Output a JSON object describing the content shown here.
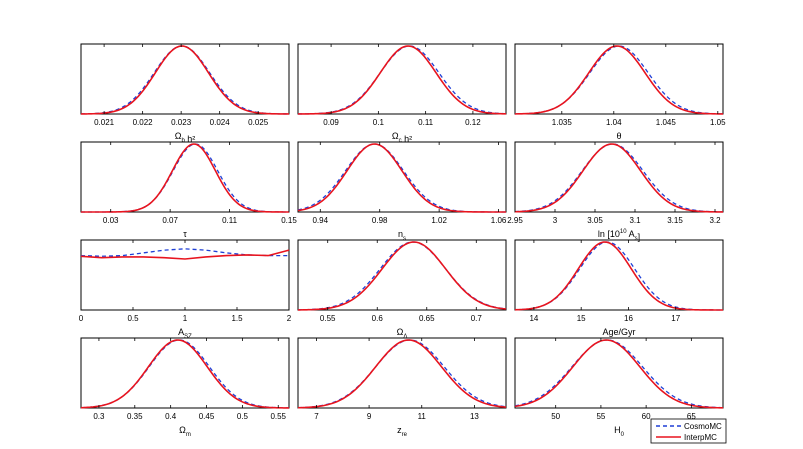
{
  "chart_data": [
    {
      "type": "line",
      "xlabel": {
        "main": "Ω",
        "sub": "b",
        "rest": " h²"
      },
      "xticks": [
        "0.021",
        "0.022",
        "0.023",
        "0.024",
        "0.025"
      ],
      "xtick_values": [
        0.021,
        0.022,
        0.023,
        0.024,
        0.025
      ],
      "xlim": [
        0.0204,
        0.0258
      ],
      "curves": {
        "CosmoMC": {
          "kind": "gauss",
          "mu": 0.02302,
          "sigma": 0.00072
        },
        "InterpMC": {
          "kind": "gauss",
          "mu": 0.02302,
          "sigma": 0.00069
        }
      }
    },
    {
      "type": "line",
      "xlabel": {
        "main": "Ω",
        "sub": "c",
        "rest": " h²"
      },
      "xticks": [
        "0.09",
        "0.1",
        "0.11",
        "0.12"
      ],
      "xtick_values": [
        0.09,
        0.1,
        0.11,
        0.12
      ],
      "xlim": [
        0.083,
        0.127
      ],
      "curves": {
        "CosmoMC": {
          "kind": "gauss",
          "mu": 0.1066,
          "sigma": 0.0062
        },
        "InterpMC": {
          "kind": "gauss",
          "mu": 0.1063,
          "sigma": 0.0059
        }
      }
    },
    {
      "type": "line",
      "xlabel": {
        "main": "θ",
        "sub": "",
        "rest": ""
      },
      "xticks": [
        "1.035",
        "1.04",
        "1.045",
        "1.05"
      ],
      "xtick_values": [
        1.035,
        1.04,
        1.045,
        1.05
      ],
      "xlim": [
        1.0305,
        1.0505
      ],
      "curves": {
        "CosmoMC": {
          "kind": "gauss",
          "mu": 1.0405,
          "sigma": 0.0028
        },
        "InterpMC": {
          "kind": "gauss",
          "mu": 1.0403,
          "sigma": 0.0027
        }
      }
    },
    {
      "type": "line",
      "xlabel": {
        "main": "τ",
        "sub": "",
        "rest": ""
      },
      "xticks": [
        "0.03",
        "0.07",
        "0.11",
        "0.15"
      ],
      "xtick_values": [
        0.03,
        0.07,
        0.11,
        0.15
      ],
      "xlim": [
        0.01,
        0.15
      ],
      "curves": {
        "CosmoMC": {
          "kind": "gauss",
          "mu": 0.087,
          "sigma": 0.015
        },
        "InterpMC": {
          "kind": "gauss",
          "mu": 0.086,
          "sigma": 0.0145
        }
      }
    },
    {
      "type": "line",
      "xlabel": {
        "main": "n",
        "sub": "s",
        "rest": ""
      },
      "xticks": [
        "0.94",
        "0.98",
        "1.02",
        "1.06"
      ],
      "xtick_values": [
        0.94,
        0.98,
        1.02,
        1.06
      ],
      "xlim": [
        0.925,
        1.065
      ],
      "curves": {
        "CosmoMC": {
          "kind": "gauss",
          "mu": 0.9765,
          "sigma": 0.0195
        },
        "InterpMC": {
          "kind": "gauss",
          "mu": 0.9765,
          "sigma": 0.0185
        }
      }
    },
    {
      "type": "line",
      "xlabel": {
        "main": "ln [10",
        "sub": "",
        "rest": "10",
        "rest2": " A",
        "sub2": "s",
        "rest3": "]"
      },
      "xticks": [
        "2.95",
        "3",
        "3.05",
        "3.1",
        "3.15",
        "3.2"
      ],
      "xtick_values": [
        2.95,
        3.0,
        3.05,
        3.1,
        3.15,
        3.2
      ],
      "xlim": [
        2.95,
        3.21
      ],
      "curves": {
        "CosmoMC": {
          "kind": "gauss",
          "mu": 3.072,
          "sigma": 0.038
        },
        "InterpMC": {
          "kind": "gauss",
          "mu": 3.071,
          "sigma": 0.036
        }
      }
    },
    {
      "type": "line",
      "xlabel": {
        "main": "A",
        "sub": "SZ",
        "rest": ""
      },
      "xticks": [
        "0",
        "0.5",
        "1",
        "1.5",
        "2"
      ],
      "xtick_values": [
        0,
        0.5,
        1,
        1.5,
        2
      ],
      "xlim": [
        0,
        2
      ],
      "curves": {
        "CosmoMC": {
          "kind": "points",
          "x": [
            0,
            0.2,
            0.4,
            0.6,
            0.8,
            1.0,
            1.2,
            1.4,
            1.6,
            1.8,
            2.0
          ],
          "y": [
            0.8,
            0.79,
            0.8,
            0.84,
            0.88,
            0.9,
            0.88,
            0.84,
            0.81,
            0.8,
            0.8
          ]
        },
        "InterpMC": {
          "kind": "points",
          "x": [
            0,
            0.2,
            0.4,
            0.6,
            0.8,
            1.0,
            1.2,
            1.4,
            1.6,
            1.8,
            2.0
          ],
          "y": [
            0.79,
            0.77,
            0.78,
            0.78,
            0.77,
            0.75,
            0.78,
            0.8,
            0.81,
            0.8,
            0.88
          ]
        }
      }
    },
    {
      "type": "line",
      "xlabel": {
        "main": "Ω",
        "sub": "Λ",
        "rest": ""
      },
      "xticks": [
        "0.55",
        "0.6",
        "0.65",
        "0.7"
      ],
      "xtick_values": [
        0.55,
        0.6,
        0.65,
        0.7
      ],
      "xlim": [
        0.52,
        0.73
      ],
      "curves": {
        "CosmoMC": {
          "kind": "gauss",
          "mu": 0.636,
          "sigma": 0.033
        },
        "InterpMC": {
          "kind": "gauss",
          "mu": 0.637,
          "sigma": 0.032
        }
      }
    },
    {
      "type": "line",
      "xlabel": {
        "main": "Age/Gyr",
        "sub": "",
        "rest": ""
      },
      "xticks": [
        "14",
        "15",
        "16",
        "17"
      ],
      "xtick_values": [
        14,
        15,
        16,
        17
      ],
      "xlim": [
        13.6,
        18.0
      ],
      "curves": {
        "CosmoMC": {
          "kind": "gauss",
          "mu": 15.55,
          "sigma": 0.58
        },
        "InterpMC": {
          "kind": "gauss",
          "mu": 15.5,
          "sigma": 0.56
        }
      }
    },
    {
      "type": "line",
      "xlabel": {
        "main": "Ω",
        "sub": "m",
        "rest": ""
      },
      "xticks": [
        "0.3",
        "0.35",
        "0.4",
        "0.45",
        "0.5",
        "0.55"
      ],
      "xtick_values": [
        0.3,
        0.35,
        0.4,
        0.45,
        0.5,
        0.55
      ],
      "xlim": [
        0.275,
        0.565
      ],
      "curves": {
        "CosmoMC": {
          "kind": "gauss",
          "mu": 0.412,
          "sigma": 0.042
        },
        "InterpMC": {
          "kind": "gauss",
          "mu": 0.41,
          "sigma": 0.041
        }
      }
    },
    {
      "type": "line",
      "xlabel": {
        "main": "z",
        "sub": "re",
        "rest": ""
      },
      "xticks": [
        "7",
        "9",
        "11",
        "13"
      ],
      "xtick_values": [
        7,
        9,
        11,
        13
      ],
      "xlim": [
        6.3,
        14.2
      ],
      "curves": {
        "CosmoMC": {
          "kind": "gauss",
          "mu": 10.55,
          "sigma": 1.3
        },
        "InterpMC": {
          "kind": "gauss",
          "mu": 10.5,
          "sigma": 1.25
        }
      }
    },
    {
      "type": "line",
      "xlabel": {
        "main": "H",
        "sub": "0",
        "rest": ""
      },
      "xticks": [
        "50",
        "55",
        "60",
        "65"
      ],
      "xtick_values": [
        50,
        55,
        60,
        65
      ],
      "xlim": [
        45.5,
        68.5
      ],
      "curves": {
        "CosmoMC": {
          "kind": "gauss",
          "mu": 55.7,
          "sigma": 3.9
        },
        "InterpMC": {
          "kind": "gauss",
          "mu": 55.6,
          "sigma": 3.7
        }
      }
    }
  ],
  "legend": {
    "entries": [
      {
        "label": "CosmoMC",
        "color": "#1f3fd6",
        "style": "dashed"
      },
      {
        "label": "InterpMC",
        "color": "#e8141e",
        "style": "solid"
      }
    ]
  }
}
